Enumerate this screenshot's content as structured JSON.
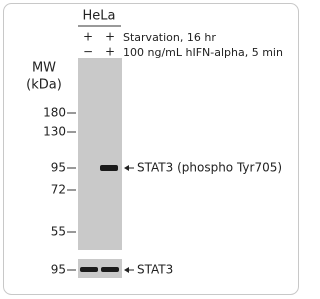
{
  "header": {
    "cell_line": "HeLa"
  },
  "conditions": [
    {
      "label": "Starvation, 16 hr",
      "lanes": [
        "+",
        "+"
      ]
    },
    {
      "label": "100 ng/mL hIFN-alpha, 5 min",
      "lanes": [
        "−",
        "+"
      ]
    }
  ],
  "mw": {
    "title": "MW",
    "unit": "(kDa)",
    "markers": [
      180,
      130,
      95,
      72,
      55
    ]
  },
  "blots": [
    {
      "label": "STAT3 (phospho Tyr705)"
    },
    {
      "label": "STAT3",
      "marker": 95
    }
  ]
}
